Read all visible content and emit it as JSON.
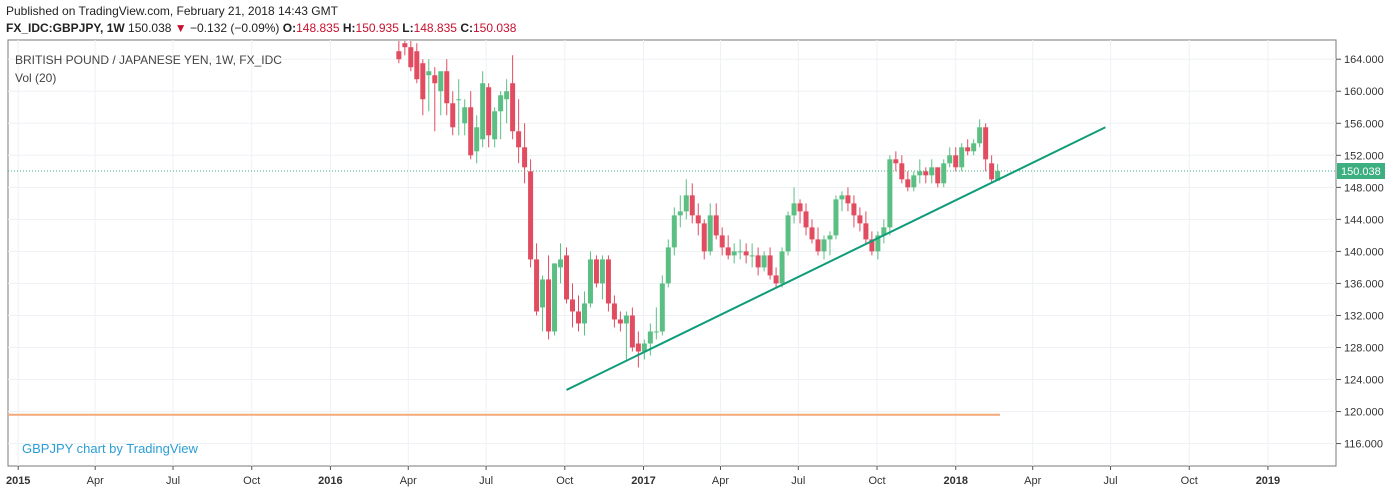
{
  "header": {
    "published": "Published on TradingView.com, February 21, 2018 14:43 GMT",
    "symbol": "FX_IDC:GBPJPY, 1W",
    "price": "150.038",
    "change": "−0.132 (−0.09%)",
    "open_label": "O:",
    "open": "148.835",
    "high_label": "H:",
    "high": "150.935",
    "low_label": "L:",
    "low": "148.835",
    "close_label": "C:",
    "close": "150.038"
  },
  "legend": {
    "title": "BRITISH POUND / JAPANESE YEN, 1W, FX_IDC",
    "indicator": "Vol (20)"
  },
  "watermark": "GBPJPY chart by TradingView",
  "colors": {
    "up": "#5bbf83",
    "down": "#e24c60",
    "trendline": "#0f9c78",
    "support": "#f4a97a",
    "price_line": "#3cae7f",
    "grid": "#eef1f5"
  },
  "chart_data": {
    "type": "candlestick",
    "x_axis": {
      "ticks": [
        "2015",
        "Apr",
        "Jul",
        "Oct",
        "2016",
        "Apr",
        "Jul",
        "Oct",
        "2017",
        "Apr",
        "Jul",
        "Oct",
        "2018",
        "Apr",
        "Jul",
        "Oct",
        "2019"
      ],
      "bold_ticks": [
        "2015",
        "2016",
        "2017",
        "2018",
        "2019"
      ]
    },
    "y_axis": {
      "ticks": [
        116,
        120,
        124,
        128,
        132,
        136,
        140,
        144,
        148,
        152,
        156,
        160,
        164
      ],
      "ylim": [
        113.2,
        166.4
      ],
      "side": "right"
    },
    "current_price": 150.038,
    "series": [
      {
        "type": "candles",
        "ohlc_weekly": [
          [
            165.0,
            167.0,
            163.5,
            164.0
          ],
          [
            166.0,
            167.5,
            164.5,
            165.5
          ],
          [
            165.5,
            167.0,
            162.5,
            163.0
          ],
          [
            165.0,
            166.0,
            161.0,
            161.5
          ],
          [
            163.5,
            164.0,
            157.0,
            159.0
          ],
          [
            162.0,
            164.0,
            157.5,
            162.5
          ],
          [
            162.0,
            163.0,
            155.0,
            161.0
          ],
          [
            160.0,
            162.0,
            157.0,
            162.5
          ],
          [
            162.5,
            164.0,
            157.0,
            158.5
          ],
          [
            158.5,
            160.0,
            154.5,
            155.5
          ],
          [
            159.0,
            161.5,
            154.5,
            159.0
          ],
          [
            156.0,
            159.0,
            154.5,
            158.0
          ],
          [
            158.0,
            160.0,
            151.5,
            152.0
          ],
          [
            152.5,
            157.0,
            151.0,
            155.5
          ],
          [
            154.0,
            162.5,
            153.0,
            161.0
          ],
          [
            160.5,
            161.0,
            153.0,
            154.5
          ],
          [
            154.0,
            158.0,
            153.0,
            157.5
          ],
          [
            157.5,
            160.0,
            154.0,
            159.5
          ],
          [
            159.0,
            161.5,
            156.0,
            160.0
          ],
          [
            161.0,
            164.5,
            154.0,
            155.0
          ],
          [
            155.0,
            159.0,
            151.0,
            153.0
          ],
          [
            153.0,
            156.0,
            148.5,
            150.5
          ],
          [
            150.0,
            151.5,
            138.0,
            139.0
          ],
          [
            139.0,
            141.0,
            132.0,
            132.5
          ],
          [
            133.0,
            137.0,
            130.0,
            136.5
          ],
          [
            136.5,
            139.5,
            129.0,
            130.0
          ],
          [
            130.0,
            138.5,
            129.5,
            138.5
          ],
          [
            138.0,
            141.0,
            136.0,
            139.0
          ],
          [
            139.5,
            140.5,
            133.5,
            134.0
          ],
          [
            134.0,
            136.0,
            130.5,
            132.5
          ],
          [
            132.5,
            134.5,
            130.0,
            131.0
          ],
          [
            131.0,
            135.0,
            129.5,
            133.5
          ],
          [
            133.5,
            140.0,
            133.0,
            139.0
          ],
          [
            139.0,
            139.5,
            135.5,
            136.0
          ],
          [
            136.0,
            139.5,
            134.0,
            139.0
          ],
          [
            139.0,
            139.5,
            132.5,
            133.5
          ],
          [
            133.5,
            134.5,
            130.5,
            131.5
          ],
          [
            131.5,
            132.5,
            130.0,
            131.0
          ],
          [
            131.0,
            132.5,
            126.5,
            132.0
          ],
          [
            132.0,
            133.0,
            127.5,
            128.0
          ],
          [
            128.5,
            130.0,
            125.5,
            127.5
          ],
          [
            127.5,
            129.0,
            126.5,
            128.5
          ],
          [
            128.5,
            131.0,
            127.0,
            130.0
          ],
          [
            130.0,
            133.0,
            129.0,
            130.0
          ],
          [
            130.0,
            137.0,
            129.5,
            136.0
          ],
          [
            136.0,
            141.5,
            135.5,
            140.5
          ],
          [
            140.5,
            145.5,
            139.5,
            144.5
          ],
          [
            144.5,
            147.0,
            143.0,
            145.0
          ],
          [
            145.0,
            149.0,
            144.0,
            147.0
          ],
          [
            147.0,
            148.5,
            143.5,
            144.5
          ],
          [
            144.5,
            146.0,
            142.0,
            143.5
          ],
          [
            143.5,
            144.0,
            139.0,
            140.0
          ],
          [
            140.0,
            146.0,
            139.5,
            144.5
          ],
          [
            144.5,
            146.0,
            141.5,
            142.0
          ],
          [
            142.0,
            143.0,
            139.5,
            140.5
          ],
          [
            140.5,
            142.0,
            139.0,
            139.5
          ],
          [
            139.5,
            141.0,
            138.5,
            140.0
          ],
          [
            140.0,
            141.5,
            139.0,
            140.0
          ],
          [
            140.0,
            141.0,
            138.5,
            139.5
          ],
          [
            139.5,
            141.0,
            138.0,
            139.5
          ],
          [
            139.5,
            140.5,
            137.0,
            138.0
          ],
          [
            138.0,
            140.0,
            137.5,
            139.5
          ],
          [
            139.5,
            140.5,
            136.5,
            137.0
          ],
          [
            137.0,
            138.0,
            135.5,
            136.0
          ],
          [
            136.0,
            140.5,
            135.5,
            140.0
          ],
          [
            140.0,
            145.0,
            139.5,
            144.5
          ],
          [
            144.5,
            148.0,
            143.5,
            146.0
          ],
          [
            146.0,
            146.5,
            143.5,
            145.0
          ],
          [
            145.0,
            146.0,
            142.0,
            143.0
          ],
          [
            143.0,
            144.0,
            141.0,
            141.5
          ],
          [
            141.5,
            143.0,
            139.5,
            140.0
          ],
          [
            140.0,
            142.0,
            139.0,
            141.5
          ],
          [
            141.5,
            142.5,
            139.5,
            142.0
          ],
          [
            142.0,
            147.0,
            141.5,
            146.5
          ],
          [
            146.5,
            147.5,
            145.0,
            147.0
          ],
          [
            147.0,
            148.0,
            145.0,
            146.0
          ],
          [
            146.0,
            147.0,
            143.0,
            144.5
          ],
          [
            144.5,
            145.5,
            142.5,
            143.5
          ],
          [
            143.5,
            145.0,
            141.0,
            141.5
          ],
          [
            141.5,
            142.5,
            139.5,
            140.0
          ],
          [
            140.0,
            142.5,
            139.0,
            142.0
          ],
          [
            142.0,
            144.0,
            141.0,
            143.0
          ],
          [
            143.0,
            152.0,
            142.0,
            151.5
          ],
          [
            151.5,
            152.5,
            150.0,
            151.0
          ],
          [
            151.0,
            152.0,
            148.5,
            149.0
          ],
          [
            149.0,
            150.0,
            147.5,
            148.0
          ],
          [
            148.0,
            150.0,
            147.5,
            149.5
          ],
          [
            149.5,
            151.5,
            148.5,
            150.0
          ],
          [
            150.0,
            150.5,
            148.5,
            149.5
          ],
          [
            149.5,
            151.5,
            148.5,
            150.5
          ],
          [
            150.5,
            150.5,
            148.0,
            148.5
          ],
          [
            148.5,
            151.5,
            148.0,
            151.0
          ],
          [
            151.0,
            153.0,
            150.5,
            152.0
          ],
          [
            152.0,
            153.0,
            150.0,
            150.5
          ],
          [
            150.5,
            153.5,
            150.0,
            153.0
          ],
          [
            153.0,
            154.0,
            152.0,
            152.5
          ],
          [
            152.5,
            154.0,
            152.0,
            153.5
          ],
          [
            153.5,
            156.5,
            153.0,
            155.5
          ],
          [
            155.5,
            156.0,
            150.0,
            151.5
          ],
          [
            151.0,
            152.0,
            148.5,
            149.0
          ],
          [
            148.835,
            150.935,
            148.835,
            150.038
          ]
        ]
      },
      {
        "type": "trendline",
        "points": [
          [
            "2016-10-03",
            122.7
          ],
          [
            "2018-06-25",
            155.5
          ]
        ]
      },
      {
        "type": "horizontal_line",
        "value": 119.6
      }
    ]
  }
}
